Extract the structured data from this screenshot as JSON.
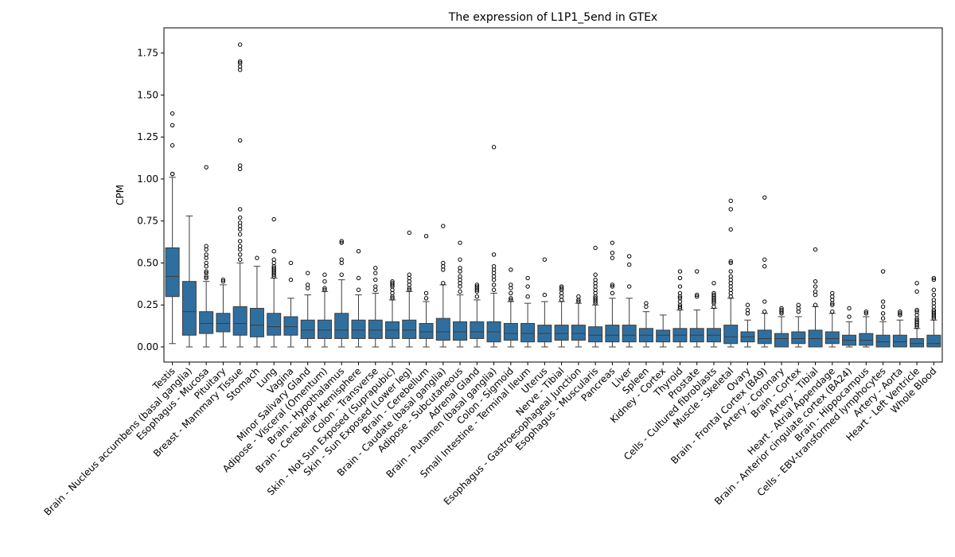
{
  "chart_data": {
    "type": "box",
    "title": "The expression of L1P1_5end in GTEx",
    "xlabel": "",
    "ylabel": "CPM",
    "ylim": [
      -0.09,
      1.9
    ],
    "yticks": [
      "0.00",
      "0.25",
      "0.50",
      "0.75",
      "1.00",
      "1.25",
      "1.50",
      "1.75"
    ],
    "color": "#2f6f9f",
    "categories": [
      {
        "name": "Testis",
        "min": 0.02,
        "q1": 0.3,
        "median": 0.42,
        "q3": 0.59,
        "max": 1.01,
        "outliers": [
          1.03,
          1.03,
          1.2,
          1.32,
          1.39
        ]
      },
      {
        "name": "Brain - Nucleus accumbens (basal ganglia)",
        "min": 0.0,
        "q1": 0.07,
        "median": 0.21,
        "q3": 0.39,
        "max": 0.78,
        "outliers": []
      },
      {
        "name": "Esophagus - Mucosa",
        "min": 0.0,
        "q1": 0.08,
        "median": 0.14,
        "q3": 0.21,
        "max": 0.39,
        "outliers": [
          0.41,
          0.42,
          0.44,
          0.45,
          0.48,
          0.5,
          0.53,
          0.55,
          0.58,
          0.6,
          1.07
        ]
      },
      {
        "name": "Pituitary",
        "min": 0.0,
        "q1": 0.09,
        "median": 0.14,
        "q3": 0.2,
        "max": 0.37,
        "outliers": [
          0.39,
          0.4
        ]
      },
      {
        "name": "Breast - Mammary Tissue",
        "min": 0.0,
        "q1": 0.07,
        "median": 0.14,
        "q3": 0.24,
        "max": 0.5,
        "outliers": [
          0.52,
          0.55,
          0.58,
          0.6,
          0.63,
          0.67,
          0.7,
          0.72,
          0.74,
          0.77,
          0.82,
          1.06,
          1.08,
          1.23,
          1.65,
          1.67,
          1.69,
          1.7,
          1.8
        ]
      },
      {
        "name": "Stomach",
        "min": 0.0,
        "q1": 0.06,
        "median": 0.13,
        "q3": 0.23,
        "max": 0.48,
        "outliers": [
          0.53
        ]
      },
      {
        "name": "Lung",
        "min": 0.0,
        "q1": 0.07,
        "median": 0.12,
        "q3": 0.2,
        "max": 0.41,
        "outliers": [
          0.42,
          0.43,
          0.44,
          0.45,
          0.46,
          0.47,
          0.48,
          0.5,
          0.52,
          0.57,
          0.76
        ]
      },
      {
        "name": "Vagina",
        "min": 0.0,
        "q1": 0.07,
        "median": 0.12,
        "q3": 0.18,
        "max": 0.29,
        "outliers": [
          0.4,
          0.5
        ]
      },
      {
        "name": "Minor Salivary Gland",
        "min": 0.0,
        "q1": 0.05,
        "median": 0.1,
        "q3": 0.16,
        "max": 0.31,
        "outliers": [
          0.35,
          0.37,
          0.44
        ]
      },
      {
        "name": "Adipose - Visceral (Omentum)",
        "min": 0.0,
        "q1": 0.05,
        "median": 0.1,
        "q3": 0.16,
        "max": 0.33,
        "outliers": [
          0.34,
          0.35,
          0.39,
          0.43
        ]
      },
      {
        "name": "Brain - Hypothalamus",
        "min": 0.0,
        "q1": 0.05,
        "median": 0.1,
        "q3": 0.2,
        "max": 0.4,
        "outliers": [
          0.43,
          0.5,
          0.52,
          0.62,
          0.63
        ]
      },
      {
        "name": "Brain - Cerebellar Hemisphere",
        "min": 0.0,
        "q1": 0.05,
        "median": 0.1,
        "q3": 0.16,
        "max": 0.31,
        "outliers": [
          0.34,
          0.41,
          0.57
        ]
      },
      {
        "name": "Colon - Transverse",
        "min": 0.0,
        "q1": 0.05,
        "median": 0.1,
        "q3": 0.16,
        "max": 0.32,
        "outliers": [
          0.34,
          0.36,
          0.4,
          0.44,
          0.47
        ]
      },
      {
        "name": "Skin - Not Sun Exposed (Suprapubic)",
        "min": 0.0,
        "q1": 0.05,
        "median": 0.1,
        "q3": 0.15,
        "max": 0.28,
        "outliers": [
          0.29,
          0.3,
          0.32,
          0.34,
          0.36,
          0.37,
          0.38,
          0.39
        ]
      },
      {
        "name": "Skin - Sun Exposed (Lower leg)",
        "min": 0.0,
        "q1": 0.05,
        "median": 0.1,
        "q3": 0.16,
        "max": 0.33,
        "outliers": [
          0.34,
          0.35,
          0.37,
          0.39,
          0.41,
          0.43,
          0.68
        ]
      },
      {
        "name": "Brain - Cerebellum",
        "min": 0.0,
        "q1": 0.05,
        "median": 0.09,
        "q3": 0.14,
        "max": 0.27,
        "outliers": [
          0.29,
          0.32,
          0.66
        ]
      },
      {
        "name": "Brain - Caudate (basal ganglia)",
        "min": 0.0,
        "q1": 0.04,
        "median": 0.09,
        "q3": 0.17,
        "max": 0.37,
        "outliers": [
          0.38,
          0.46,
          0.48,
          0.5,
          0.72
        ]
      },
      {
        "name": "Adipose - Subcutaneous",
        "min": 0.0,
        "q1": 0.04,
        "median": 0.09,
        "q3": 0.15,
        "max": 0.31,
        "outliers": [
          0.33,
          0.36,
          0.38,
          0.4,
          0.42,
          0.45,
          0.47,
          0.52,
          0.62
        ]
      },
      {
        "name": "Adrenal Gland",
        "min": 0.0,
        "q1": 0.05,
        "median": 0.09,
        "q3": 0.15,
        "max": 0.28,
        "outliers": [
          0.3,
          0.33,
          0.34,
          0.35,
          0.36,
          0.37
        ]
      },
      {
        "name": "Brain - Putamen (basal ganglia)",
        "min": 0.0,
        "q1": 0.03,
        "median": 0.09,
        "q3": 0.15,
        "max": 0.32,
        "outliers": [
          0.34,
          0.37,
          0.4,
          0.42,
          0.44,
          0.46,
          0.48,
          0.55,
          1.19
        ]
      },
      {
        "name": "Colon - Sigmoid",
        "min": 0.0,
        "q1": 0.04,
        "median": 0.08,
        "q3": 0.14,
        "max": 0.27,
        "outliers": [
          0.28,
          0.29,
          0.32,
          0.35,
          0.37,
          0.46
        ]
      },
      {
        "name": "Small Intestine - Terminal Ileum",
        "min": 0.0,
        "q1": 0.03,
        "median": 0.08,
        "q3": 0.14,
        "max": 0.26,
        "outliers": [
          0.3,
          0.36,
          0.41
        ]
      },
      {
        "name": "Uterus",
        "min": 0.0,
        "q1": 0.03,
        "median": 0.08,
        "q3": 0.13,
        "max": 0.27,
        "outliers": [
          0.31,
          0.52
        ]
      },
      {
        "name": "Nerve - Tibial",
        "min": 0.0,
        "q1": 0.04,
        "median": 0.08,
        "q3": 0.13,
        "max": 0.27,
        "outliers": [
          0.28,
          0.3,
          0.32,
          0.34,
          0.35,
          0.36
        ]
      },
      {
        "name": "Esophagus - Gastroesophageal Junction",
        "min": 0.0,
        "q1": 0.04,
        "median": 0.08,
        "q3": 0.13,
        "max": 0.26,
        "outliers": [
          0.27,
          0.28,
          0.3
        ]
      },
      {
        "name": "Esophagus - Muscularis",
        "min": 0.0,
        "q1": 0.03,
        "median": 0.07,
        "q3": 0.12,
        "max": 0.25,
        "outliers": [
          0.26,
          0.27,
          0.28,
          0.29,
          0.3,
          0.32,
          0.34,
          0.36,
          0.38,
          0.4,
          0.43,
          0.59
        ]
      },
      {
        "name": "Pancreas",
        "min": 0.0,
        "q1": 0.03,
        "median": 0.07,
        "q3": 0.13,
        "max": 0.29,
        "outliers": [
          0.32,
          0.36,
          0.37,
          0.53,
          0.56,
          0.62
        ]
      },
      {
        "name": "Liver",
        "min": 0.0,
        "q1": 0.03,
        "median": 0.07,
        "q3": 0.13,
        "max": 0.29,
        "outliers": [
          0.36,
          0.49,
          0.54
        ]
      },
      {
        "name": "Spleen",
        "min": 0.0,
        "q1": 0.03,
        "median": 0.07,
        "q3": 0.11,
        "max": 0.21,
        "outliers": [
          0.24,
          0.26
        ]
      },
      {
        "name": "Kidney - Cortex",
        "min": 0.0,
        "q1": 0.03,
        "median": 0.07,
        "q3": 0.1,
        "max": 0.19,
        "outliers": []
      },
      {
        "name": "Thyroid",
        "min": 0.0,
        "q1": 0.03,
        "median": 0.07,
        "q3": 0.11,
        "max": 0.22,
        "outliers": [
          0.23,
          0.24,
          0.25,
          0.27,
          0.29,
          0.3,
          0.32,
          0.36,
          0.41,
          0.45
        ]
      },
      {
        "name": "Prostate",
        "min": 0.0,
        "q1": 0.03,
        "median": 0.07,
        "q3": 0.11,
        "max": 0.22,
        "outliers": [
          0.3,
          0.31,
          0.45
        ]
      },
      {
        "name": "Cells - Cultured fibroblasts",
        "min": 0.0,
        "q1": 0.03,
        "median": 0.07,
        "q3": 0.11,
        "max": 0.23,
        "outliers": [
          0.24,
          0.26,
          0.27,
          0.28,
          0.29,
          0.3,
          0.31,
          0.32,
          0.38
        ]
      },
      {
        "name": "Muscle - Skeletal",
        "min": 0.0,
        "q1": 0.02,
        "median": 0.06,
        "q3": 0.13,
        "max": 0.29,
        "outliers": [
          0.3,
          0.32,
          0.34,
          0.36,
          0.38,
          0.4,
          0.42,
          0.45,
          0.5,
          0.51,
          0.7,
          0.82,
          0.87
        ]
      },
      {
        "name": "Ovary",
        "min": 0.0,
        "q1": 0.03,
        "median": 0.06,
        "q3": 0.09,
        "max": 0.16,
        "outliers": [
          0.2,
          0.22,
          0.25
        ]
      },
      {
        "name": "Brain - Frontal Cortex (BA9)",
        "min": 0.0,
        "q1": 0.02,
        "median": 0.05,
        "q3": 0.1,
        "max": 0.2,
        "outliers": [
          0.21,
          0.27,
          0.48,
          0.52,
          0.89
        ]
      },
      {
        "name": "Artery - Coronary",
        "min": 0.0,
        "q1": 0.0,
        "median": 0.05,
        "q3": 0.08,
        "max": 0.18,
        "outliers": [
          0.2,
          0.21,
          0.22,
          0.23
        ]
      },
      {
        "name": "Brain - Cortex",
        "min": 0.0,
        "q1": 0.02,
        "median": 0.05,
        "q3": 0.09,
        "max": 0.18,
        "outliers": [
          0.21,
          0.23,
          0.25
        ]
      },
      {
        "name": "Artery - Tibial",
        "min": 0.0,
        "q1": 0.0,
        "median": 0.05,
        "q3": 0.1,
        "max": 0.24,
        "outliers": [
          0.25,
          0.31,
          0.33,
          0.36,
          0.39,
          0.58
        ]
      },
      {
        "name": "Heart - Atrial Appendage",
        "min": 0.0,
        "q1": 0.02,
        "median": 0.05,
        "q3": 0.09,
        "max": 0.2,
        "outliers": [
          0.21,
          0.25,
          0.26,
          0.28,
          0.3,
          0.32
        ]
      },
      {
        "name": "Brain - Anterior cingulate cortex (BA24)",
        "min": 0.0,
        "q1": 0.01,
        "median": 0.04,
        "q3": 0.07,
        "max": 0.15,
        "outliers": [
          0.18,
          0.23
        ]
      },
      {
        "name": "Brain - Hippocampus",
        "min": 0.0,
        "q1": 0.01,
        "median": 0.04,
        "q3": 0.08,
        "max": 0.18,
        "outliers": [
          0.2,
          0.21
        ]
      },
      {
        "name": "Cells - EBV-transformed lymphocytes",
        "min": 0.0,
        "q1": 0.0,
        "median": 0.03,
        "q3": 0.07,
        "max": 0.15,
        "outliers": [
          0.17,
          0.2,
          0.24,
          0.27,
          0.45
        ]
      },
      {
        "name": "Artery - Aorta",
        "min": 0.0,
        "q1": 0.0,
        "median": 0.03,
        "q3": 0.07,
        "max": 0.16,
        "outliers": [
          0.19,
          0.2,
          0.21
        ]
      },
      {
        "name": "Heart - Left Ventricle",
        "min": 0.0,
        "q1": 0.0,
        "median": 0.02,
        "q3": 0.05,
        "max": 0.11,
        "outliers": [
          0.12,
          0.13,
          0.14,
          0.15,
          0.16,
          0.17,
          0.19,
          0.21,
          0.22,
          0.33,
          0.38
        ]
      },
      {
        "name": "Whole Blood",
        "min": 0.0,
        "q1": 0.0,
        "median": 0.02,
        "q3": 0.07,
        "max": 0.16,
        "outliers": [
          0.17,
          0.18,
          0.19,
          0.2,
          0.21,
          0.22,
          0.24,
          0.26,
          0.28,
          0.31,
          0.34,
          0.4,
          0.41
        ]
      }
    ]
  }
}
